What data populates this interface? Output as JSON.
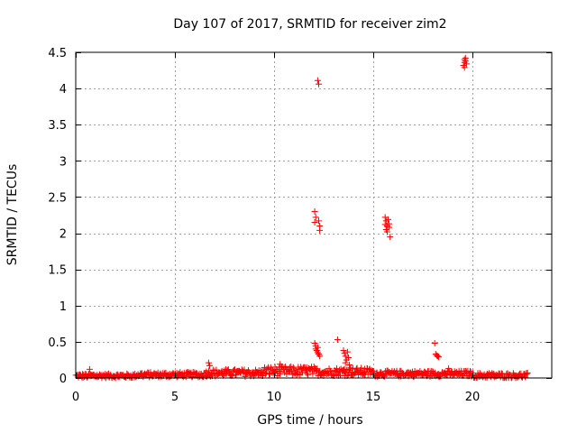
{
  "colors": {
    "series": "#ff0000",
    "grid": "#a0a0a0",
    "axis": "#000000"
  },
  "chart_data": {
    "type": "scatter",
    "title": "Day 107 of 2017, SRMTID for receiver zim2",
    "xlabel": "GPS time / hours",
    "ylabel": "SRMTID / TECUs",
    "xlim": [
      0,
      24
    ],
    "ylim": [
      0,
      4.5
    ],
    "xticks": [
      0,
      5,
      10,
      15,
      20
    ],
    "xtick_labels": [
      "0",
      "5",
      "10",
      "15",
      "20"
    ],
    "yticks": [
      0,
      0.5,
      1,
      1.5,
      2,
      2.5,
      3,
      3.5,
      4,
      4.5
    ],
    "ytick_labels": [
      "0",
      "0.5",
      "1",
      "1.5",
      "2",
      "2.5",
      "3",
      "3.5",
      "4",
      "4.5"
    ],
    "grid": true,
    "marker": "+",
    "baseline": {
      "description_note": "dense low-level SRMTID values from 0 to ~22.8 h",
      "segments": [
        {
          "x_start": 0.0,
          "x_end": 3.0,
          "y_min": 0.0,
          "y_max": 0.06
        },
        {
          "x_start": 3.0,
          "x_end": 6.5,
          "y_min": 0.01,
          "y_max": 0.08
        },
        {
          "x_start": 6.5,
          "x_end": 9.5,
          "y_min": 0.02,
          "y_max": 0.12
        },
        {
          "x_start": 9.5,
          "x_end": 12.0,
          "y_min": 0.03,
          "y_max": 0.16
        },
        {
          "x_start": 12.0,
          "x_end": 15.0,
          "y_min": 0.03,
          "y_max": 0.14
        },
        {
          "x_start": 15.0,
          "x_end": 20.0,
          "y_min": 0.02,
          "y_max": 0.1
        },
        {
          "x_start": 20.0,
          "x_end": 22.8,
          "y_min": 0.0,
          "y_max": 0.07
        }
      ]
    },
    "series": [
      {
        "name": "SRMTID",
        "points": [
          [
            0.7,
            0.12
          ],
          [
            6.7,
            0.21
          ],
          [
            6.75,
            0.17
          ],
          [
            10.3,
            0.19
          ],
          [
            10.4,
            0.15
          ],
          [
            12.05,
            2.3
          ],
          [
            12.1,
            2.22
          ],
          [
            12.05,
            2.15
          ],
          [
            12.2,
            4.11
          ],
          [
            12.25,
            4.06
          ],
          [
            12.25,
            2.17
          ],
          [
            12.3,
            2.1
          ],
          [
            12.3,
            2.04
          ],
          [
            12.05,
            0.48
          ],
          [
            12.1,
            0.44
          ],
          [
            12.1,
            0.4
          ],
          [
            12.15,
            0.38
          ],
          [
            12.2,
            0.35
          ],
          [
            12.25,
            0.33
          ],
          [
            12.3,
            0.3
          ],
          [
            12.2,
            0.42
          ],
          [
            13.2,
            0.53
          ],
          [
            13.5,
            0.38
          ],
          [
            13.55,
            0.34
          ],
          [
            13.6,
            0.3
          ],
          [
            13.65,
            0.25
          ],
          [
            13.6,
            0.21
          ],
          [
            13.7,
            0.36
          ],
          [
            13.75,
            0.28
          ],
          [
            13.8,
            0.18
          ],
          [
            13.85,
            0.14
          ],
          [
            13.55,
            0.12
          ],
          [
            15.6,
            2.22
          ],
          [
            15.65,
            2.17
          ],
          [
            15.6,
            2.12
          ],
          [
            15.7,
            2.1
          ],
          [
            15.65,
            2.05
          ],
          [
            15.75,
            2.19
          ],
          [
            15.8,
            2.13
          ],
          [
            15.7,
            2.02
          ],
          [
            15.85,
            1.95
          ],
          [
            15.8,
            2.08
          ],
          [
            18.1,
            0.48
          ],
          [
            18.15,
            0.33
          ],
          [
            18.2,
            0.31
          ],
          [
            18.25,
            0.3
          ],
          [
            18.3,
            0.29
          ],
          [
            18.8,
            0.13
          ],
          [
            19.55,
            4.32
          ],
          [
            19.6,
            4.36
          ],
          [
            19.6,
            4.4
          ],
          [
            19.65,
            4.42
          ],
          [
            19.65,
            4.38
          ],
          [
            19.7,
            4.34
          ],
          [
            19.6,
            4.29
          ]
        ]
      }
    ]
  }
}
